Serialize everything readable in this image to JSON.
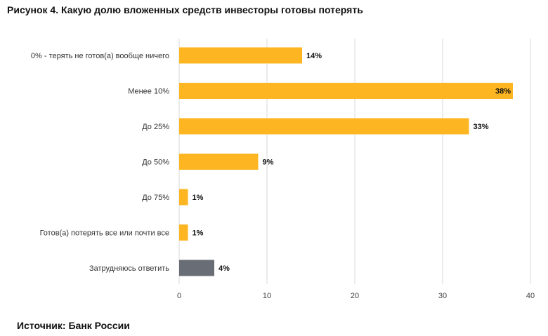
{
  "title": "Рисунок 4. Какую долю вложенных средств инвесторы готовы потерять",
  "source": "Источник: Банк России",
  "chart_data": {
    "type": "bar",
    "orientation": "horizontal",
    "categories": [
      "0% - терять не готов(а) вообще ничего",
      "Менее 10%",
      "До 25%",
      "До 50%",
      "До 75%",
      "Готов(а) потерять все или почти все",
      "Затрудняюсь ответить"
    ],
    "values": [
      14,
      38,
      33,
      9,
      1,
      1,
      4
    ],
    "value_labels": [
      "14%",
      "38%",
      "33%",
      "9%",
      "1%",
      "1%",
      "4%"
    ],
    "bar_colors": [
      "#FDB622",
      "#FDB622",
      "#FDB622",
      "#FDB622",
      "#FDB622",
      "#FDB622",
      "#696D75"
    ],
    "xlim": [
      0,
      40
    ],
    "xticks": [
      0,
      10,
      20,
      30,
      40
    ],
    "grid": "vertical",
    "gridline_color": "#D9D9D9"
  }
}
